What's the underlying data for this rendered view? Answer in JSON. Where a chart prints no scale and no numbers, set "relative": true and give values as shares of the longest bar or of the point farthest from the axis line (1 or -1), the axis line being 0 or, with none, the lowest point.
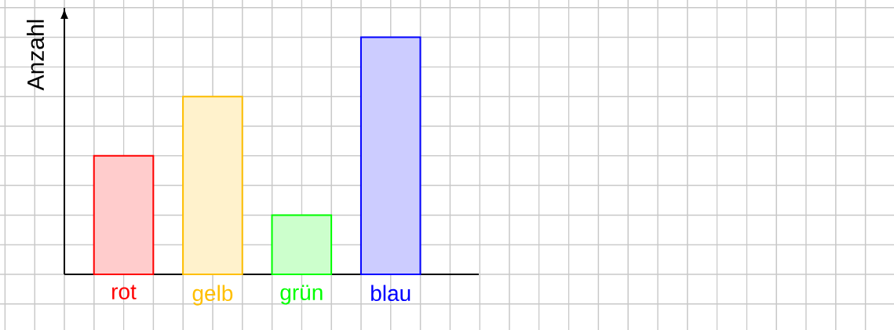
{
  "chart_data": {
    "type": "bar",
    "ylabel": "Anzahl",
    "categories": [
      "rot",
      "gelb",
      "grün",
      "blau"
    ],
    "values": [
      0.5,
      0.75,
      0.25,
      1
    ],
    "colors": [
      "#ff0000",
      "#ffbf00",
      "#00ff00",
      "#0000ff"
    ],
    "relative": true,
    "grid": true
  }
}
